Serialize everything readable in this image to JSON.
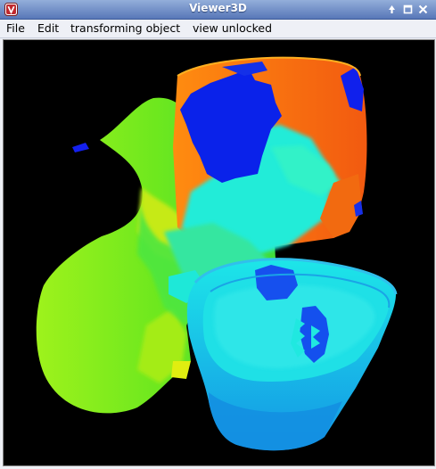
{
  "window": {
    "title": "Viewer3D",
    "icon": "viewer-app-icon",
    "controls": [
      "minimize-icon",
      "maximize-icon",
      "close-icon"
    ]
  },
  "menubar": {
    "items": [
      "File",
      "Edit",
      "transforming object",
      "view unlocked"
    ]
  },
  "viewport": {
    "background": "#000000",
    "content": "3d-colored-mesh-surface"
  },
  "colors": {
    "titlebar": "#6f8cc8",
    "mesh_blue": "#0a1ee6",
    "mesh_cyan": "#18f0dc",
    "mesh_orange": "#ff8a10",
    "mesh_green": "#6ee81e",
    "mesh_yellow": "#d8ee10",
    "mesh_lightblue": "#1aa8f0"
  }
}
